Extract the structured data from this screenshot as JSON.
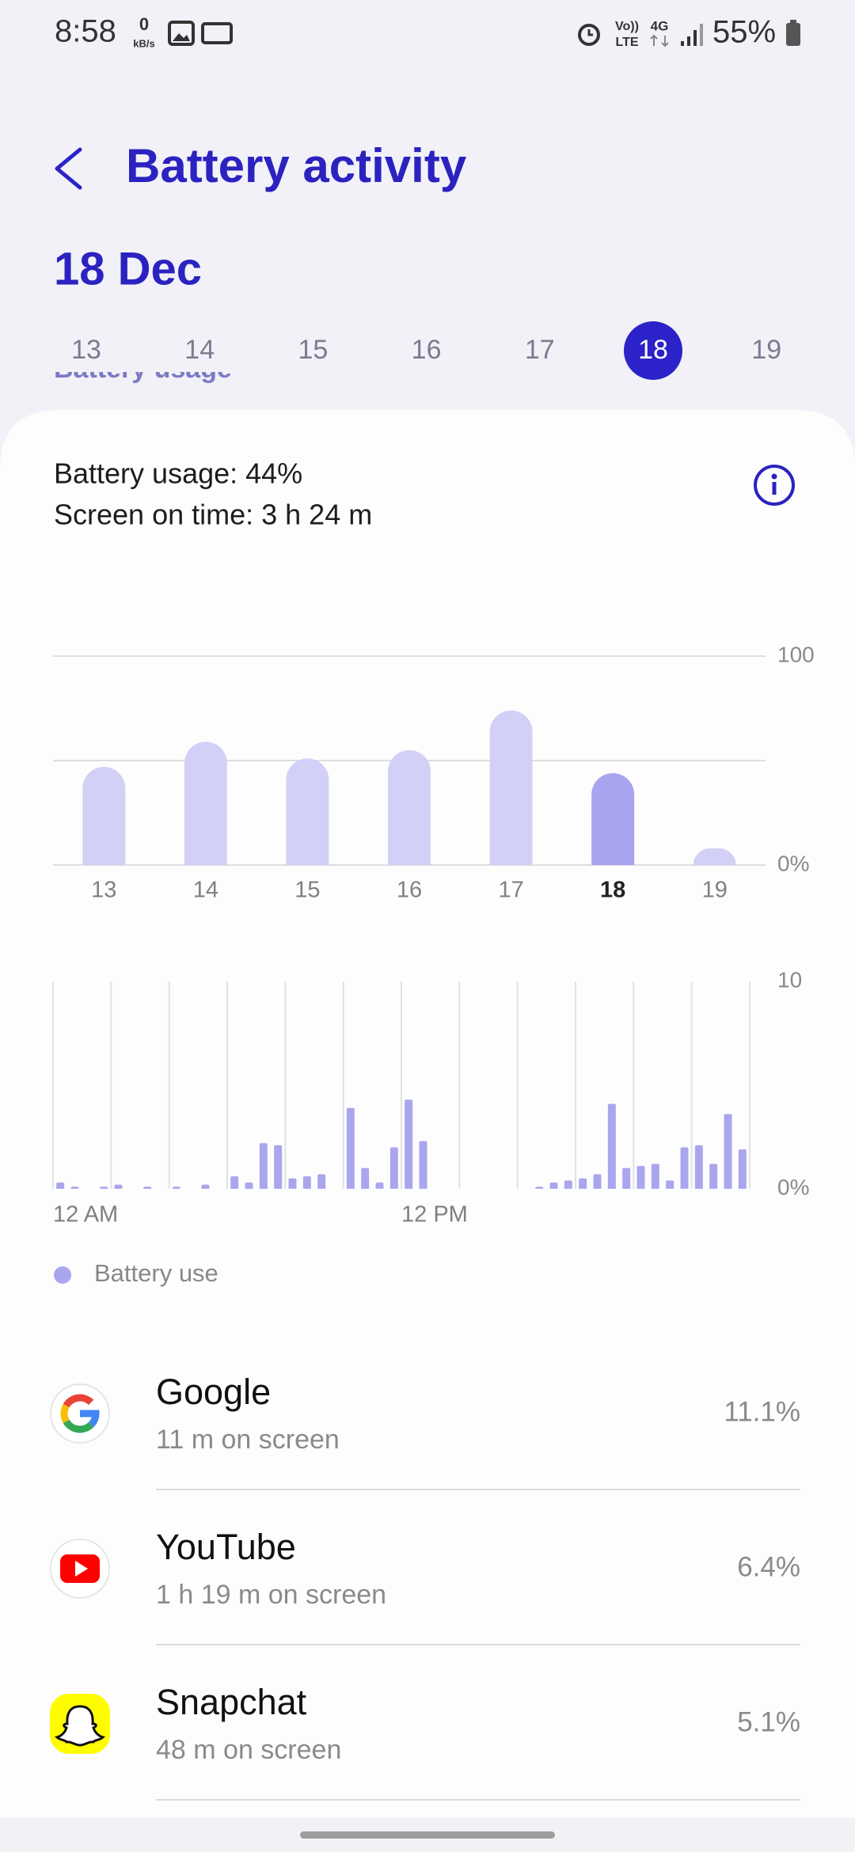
{
  "status_bar": {
    "time": "8:58",
    "net_speed": "0",
    "net_unit": "kB/s",
    "volte": "Vo))",
    "lte": "LTE",
    "network": "4G",
    "battery": "55%"
  },
  "header": {
    "title": "Battery activity"
  },
  "date_heading": "18 Dec",
  "date_strip": {
    "days": [
      "13",
      "14",
      "15",
      "16",
      "17",
      "18",
      "19"
    ],
    "selected": 5
  },
  "section_peek": "Battery usage",
  "summary": {
    "usage": "Battery usage: 44%",
    "screen_time": "Screen on time: 3 h 24 m"
  },
  "chart_data": [
    {
      "type": "bar",
      "categories": [
        "13",
        "14",
        "15",
        "16",
        "17",
        "18",
        "19"
      ],
      "values": [
        47,
        59,
        51,
        55,
        74,
        44,
        8
      ],
      "color": "#d3d0f7",
      "selected_color": "#a9a4f0",
      "selected_index": 5,
      "ylim": [
        0,
        100
      ],
      "yticks": [
        {
          "value": 0,
          "label": "0%"
        },
        100
      ],
      "ygrid": [
        0,
        50,
        100
      ]
    },
    {
      "type": "bar",
      "categories": [
        "12 AM",
        null,
        null,
        null,
        null,
        null,
        null,
        null,
        null,
        null,
        null,
        null,
        null,
        null,
        null,
        null,
        null,
        null,
        null,
        null,
        null,
        null,
        null,
        null,
        "12 PM",
        null,
        null,
        null,
        null,
        null,
        null,
        null,
        null,
        null,
        null,
        null,
        null,
        null,
        null,
        null,
        null,
        null,
        null,
        null,
        null,
        null,
        null,
        null
      ],
      "series": [
        {
          "name": "Battery use",
          "color": "#aaa6ee",
          "values": [
            0.3,
            0.1,
            0,
            0.1,
            0.2,
            0,
            0.1,
            0,
            0.1,
            0,
            0.2,
            0,
            0.6,
            0.3,
            2.2,
            2.1,
            0.5,
            0.6,
            0.7,
            0,
            3.9,
            1.0,
            0.3,
            2.0,
            4.3,
            2.3,
            0,
            0,
            0,
            0,
            0,
            0,
            0,
            0.1,
            0.3,
            0.4,
            0.5,
            0.7,
            4.1,
            1.0,
            1.1,
            1.2,
            0.4,
            2.0,
            2.1,
            1.2,
            3.6,
            1.9
          ]
        }
      ],
      "ylim": [
        0,
        10
      ],
      "yticks": [
        {
          "value": 0,
          "label": "0%"
        },
        10
      ],
      "vgrid": true
    }
  ],
  "apps": [
    {
      "name": "Google",
      "detail": "11 m on screen",
      "percent": "11.1%"
    },
    {
      "name": "YouTube",
      "detail": "1 h 19 m on screen",
      "percent": "6.4%"
    },
    {
      "name": "Snapchat",
      "detail": "48 m on screen",
      "percent": "5.1%"
    }
  ]
}
